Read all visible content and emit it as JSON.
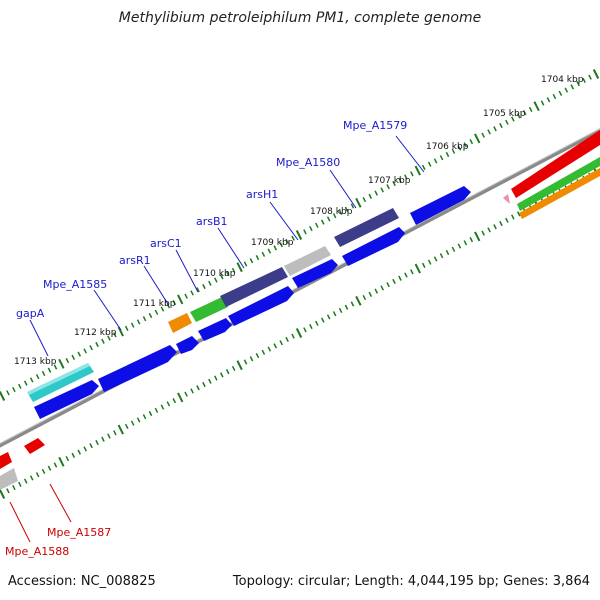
{
  "title": "Methylibium petroleiphilum PM1, complete genome",
  "footer": {
    "accession": "Accession: NC_008825",
    "summary": "Topology: circular; Length: 4,044,195 bp; Genes: 3,864"
  },
  "colors": {
    "forward_label": "#1a1acc",
    "reverse_label": "#cc0000",
    "gene_blue": "#0d0de6",
    "gene_cyan": "#2ec8c8",
    "gene_purple": "#3c3c8a",
    "gene_gray": "#bdbdbd",
    "gene_green": "#33bb33",
    "gene_orange": "#f08a00",
    "gene_red": "#e60000",
    "tick_green": "#1a7a1a",
    "backbone": "#8a8a8a"
  },
  "ticks": [
    "1704 kbp",
    "1705 kbp",
    "1706 kbp",
    "1707 kbp",
    "1708 kbp",
    "1709 kbp",
    "1710 kbp",
    "1711 kbp",
    "1712 kbp",
    "1713 kbp"
  ],
  "forward_labels": [
    "Mpe_A1579",
    "Mpe_A1580",
    "arsH1",
    "arsB1",
    "arsC1",
    "arsR1",
    "Mpe_A1585",
    "gapA"
  ],
  "reverse_labels": [
    "Mpe_A1587",
    "Mpe_A1588"
  ]
}
